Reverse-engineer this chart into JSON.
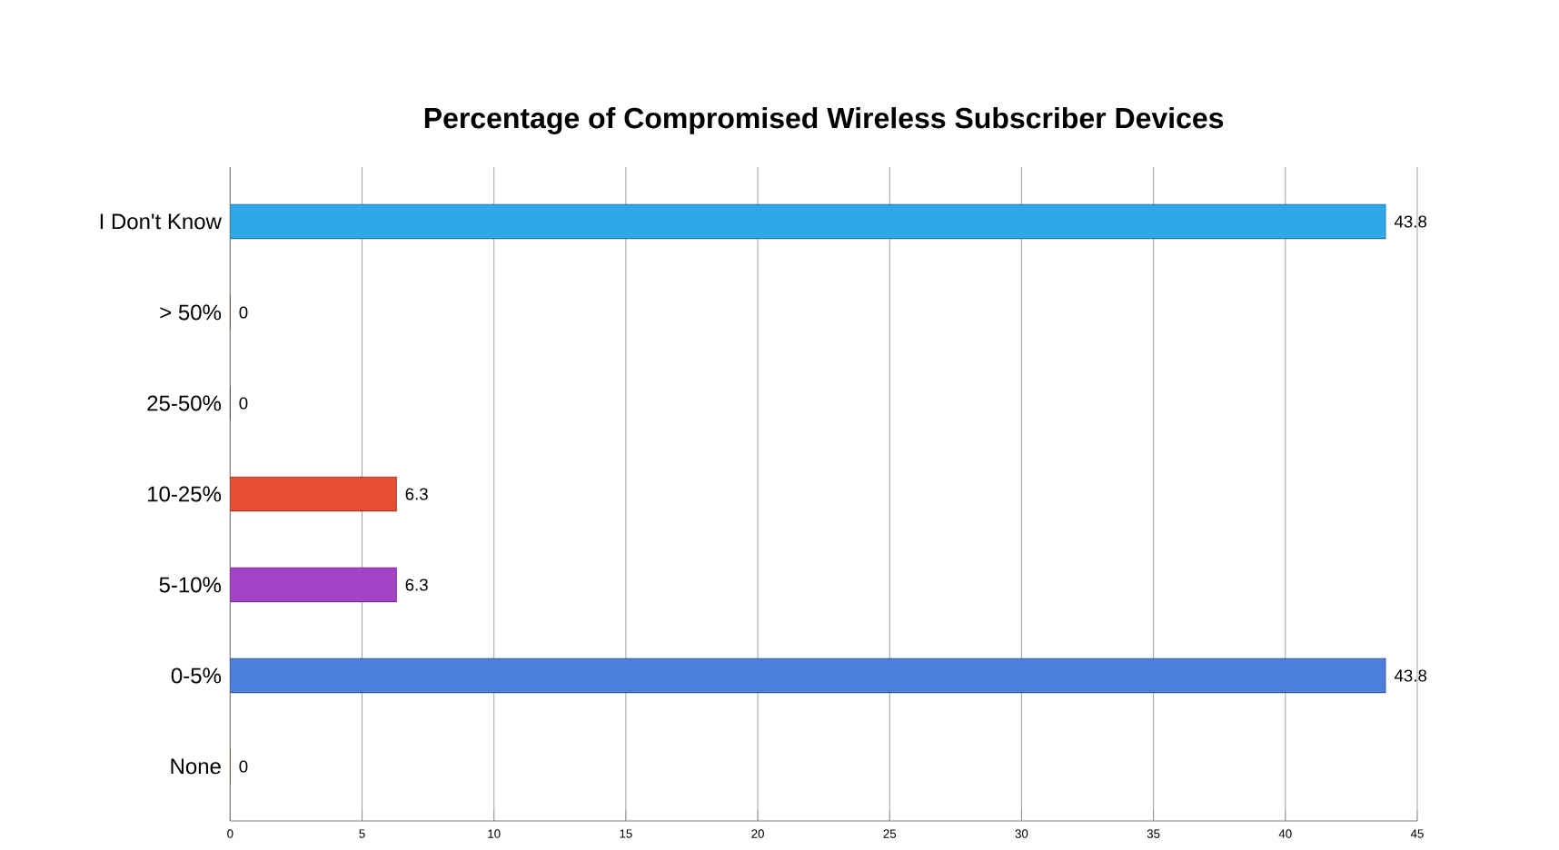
{
  "chart_data": {
    "type": "bar",
    "orientation": "horizontal",
    "title": "Percentage of Compromised Wireless Subscriber Devices",
    "categories": [
      "I Don't Know",
      "> 50%",
      "25-50%",
      "10-25%",
      "5-10%",
      "0-5%",
      "None"
    ],
    "values": [
      43.8,
      0,
      0,
      6.3,
      6.3,
      43.8,
      0
    ],
    "colors": [
      "#2ea8e8",
      "#8a4a10",
      "#1f5e1f",
      "#e94e32",
      "#a443c8",
      "#4a7fdc",
      "#9a5a18"
    ],
    "xlim": [
      0,
      45
    ],
    "xticks": [
      0,
      5,
      10,
      15,
      20,
      25,
      30,
      35,
      40,
      45
    ],
    "grid": "x",
    "data_labels": true
  }
}
